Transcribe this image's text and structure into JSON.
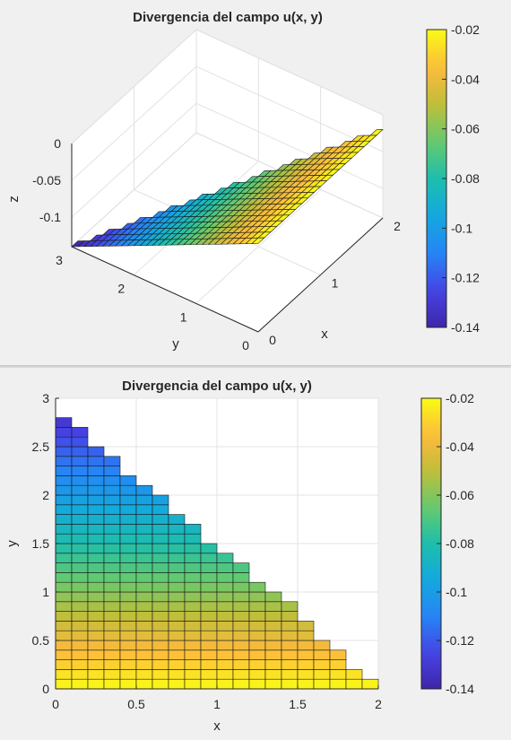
{
  "chart_data": [
    {
      "type": "surface3d",
      "title": "Divergencia del campo u(x, y)",
      "xlabel": "x",
      "ylabel": "y",
      "zlabel": "z",
      "x_ticks": [
        "0",
        "1",
        "2"
      ],
      "y_ticks": [
        "0",
        "1",
        "2",
        "3"
      ],
      "z_ticks": [
        "0",
        "-0.05",
        "-0.1"
      ],
      "xlim": [
        0,
        2
      ],
      "ylim": [
        0,
        3
      ],
      "zlim": [
        -0.14,
        0
      ],
      "colorbar": {
        "ticks": [
          "-0.02",
          "-0.04",
          "-0.06",
          "-0.08",
          "-0.1",
          "-0.12",
          "-0.14"
        ],
        "range": [
          -0.14,
          -0.02
        ]
      },
      "surface": {
        "domain": "triangle 0<=x<=2, 0<=y<=3(1-x/2)",
        "z_at_y0": -0.02,
        "z_at_y3": -0.14,
        "step": 0.1
      }
    },
    {
      "type": "heatmap",
      "title": "Divergencia del campo u(x, y)",
      "xlabel": "x",
      "ylabel": "y",
      "x_ticks": [
        "0",
        "0.5",
        "1",
        "1.5",
        "2"
      ],
      "y_ticks": [
        "0",
        "0.5",
        "1",
        "1.5",
        "2",
        "2.5",
        "3"
      ],
      "xlim": [
        0,
        2
      ],
      "ylim": [
        0,
        3
      ],
      "grid": true,
      "colorbar": {
        "ticks": [
          "-0.02",
          "-0.04",
          "-0.06",
          "-0.08",
          "-0.1",
          "-0.12",
          "-0.14"
        ],
        "range": [
          -0.14,
          -0.02
        ]
      },
      "row_step_y": 0.1,
      "column_step_x": 0.1,
      "column_heights_y": [
        2.8,
        2.7,
        2.5,
        2.4,
        2.2,
        2.1,
        2.0,
        1.8,
        1.7,
        1.5,
        1.4,
        1.3,
        1.1,
        1.0,
        0.9,
        0.7,
        0.5,
        0.4,
        0.2,
        0.1
      ],
      "value_at_y0": -0.02,
      "value_at_y3": -0.14
    }
  ]
}
